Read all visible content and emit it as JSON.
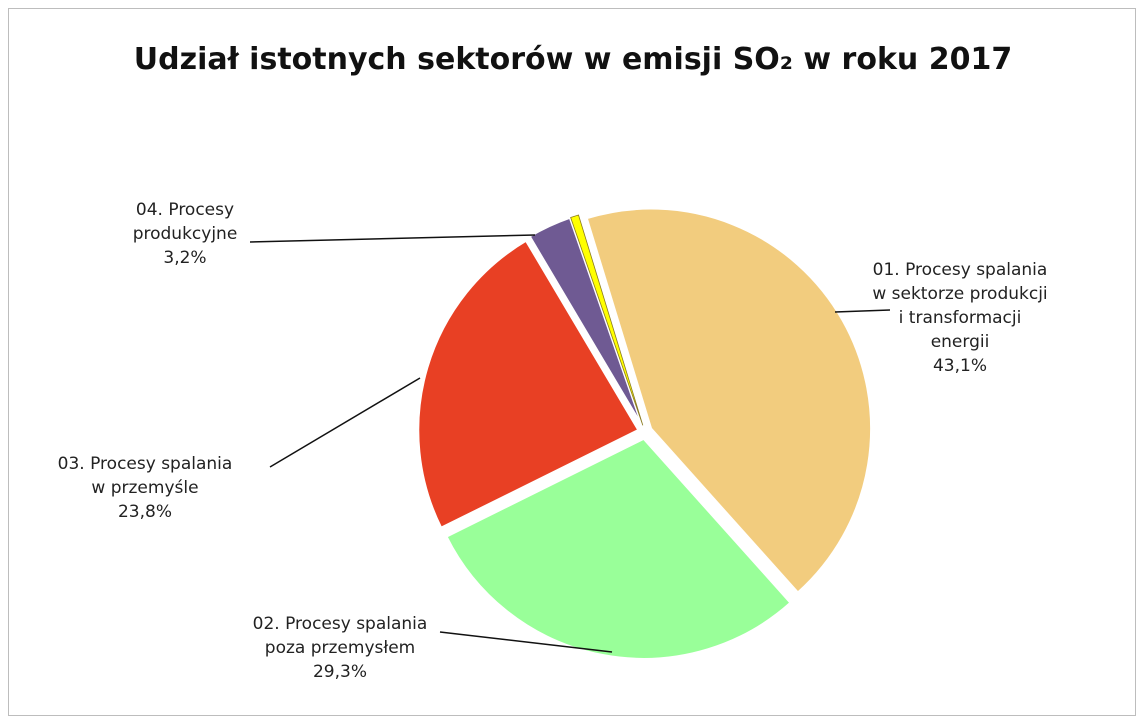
{
  "chart_data": {
    "type": "pie",
    "title": "Udział istotnych sektorów w emisji SO₂ w roku 2017",
    "categories": [
      "01. Procesy spalania\nw sektorze produkcji\ni transformacji\nenergii",
      "02. Procesy spalania\npoza przemysłem",
      "03. Procesy spalania\nw przemyśle",
      "04. Procesy\nprodukcyjne",
      null
    ],
    "values": [
      43.1,
      29.3,
      23.8,
      3.2,
      0.6
    ],
    "value_labels": [
      "43,1%",
      "29,3%",
      "23,8%",
      "3,2%",
      null
    ],
    "colors": [
      "#f2cc7e",
      "#99ff99",
      "#e84024",
      "#6f5a93",
      "#ffff00"
    ]
  }
}
